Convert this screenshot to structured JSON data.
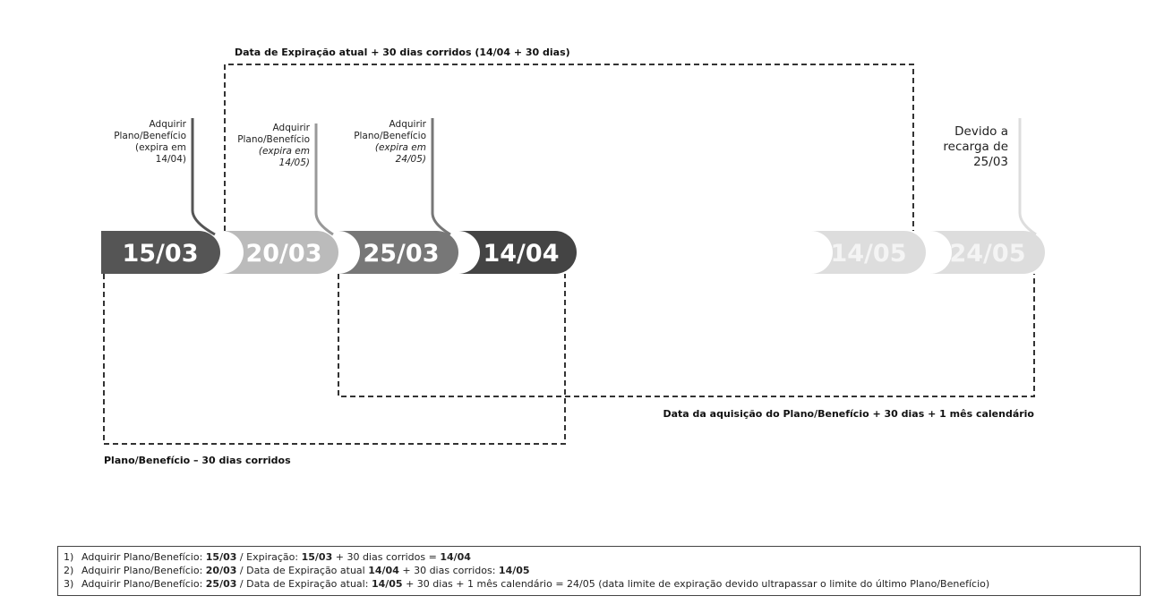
{
  "timeline": {
    "dates": [
      {
        "label": "15/03",
        "color": "#555555",
        "text_color": "#ffffff"
      },
      {
        "label": "20/03",
        "color": "#bbbbbb",
        "text_color": "#ffffff"
      },
      {
        "label": "25/03",
        "color": "#777777",
        "text_color": "#ffffff"
      },
      {
        "label": "14/04",
        "color": "#444444",
        "text_color": "#ffffff"
      },
      {
        "label": "14/05",
        "color": "#dddddd",
        "text_color": "#f4f4f4"
      },
      {
        "label": "24/05",
        "color": "#dddddd",
        "text_color": "#f4f4f4"
      }
    ]
  },
  "annotations": {
    "a1": {
      "lines": [
        "Adquirir",
        "Plano/Benefício",
        "(expira em",
        "14/04)"
      ]
    },
    "a2": {
      "lines": [
        "Adquirir",
        "Plano/Benefício",
        "(expira em",
        "14/05)"
      ]
    },
    "a3": {
      "lines": [
        "Adquirir",
        "Plano/Benefício",
        "(expira em",
        "24/05)"
      ]
    },
    "a4": {
      "lines": [
        "Devido a",
        "recarga de",
        "25/03"
      ]
    }
  },
  "rules": {
    "top": "Data de Expiração atual  + 30 dias corridos  (14/04 + 30 dias)",
    "middle": "Data da aquisição do Plano/Benefício + 30 dias + 1 mês calendário",
    "bottom": "Plano/Benefício – 30 dias corridos"
  },
  "legend": {
    "items": [
      {
        "num": "1)",
        "parts": [
          "Adquirir Plano/Benefício: ",
          "15/03",
          " / Expiração: ",
          "15/03",
          " + 30 dias corridos = ",
          "14/04",
          ""
        ]
      },
      {
        "num": "2)",
        "parts": [
          "Adquirir Plano/Benefício: ",
          "20/03",
          " / Data de Expiração atual ",
          "14/04",
          " + 30 dias corridos: ",
          "14/05",
          ""
        ]
      },
      {
        "num": "3)",
        "parts": [
          "Adquirir Plano/Benefício: ",
          "25/03",
          " / Data de Expiração atual: ",
          "14/05",
          " + 30 dias + 1 mês calendário = 24/05 (data limite de expiração devido ultrapassar o limite do último Plano/Benefício)",
          "",
          ""
        ]
      }
    ]
  }
}
